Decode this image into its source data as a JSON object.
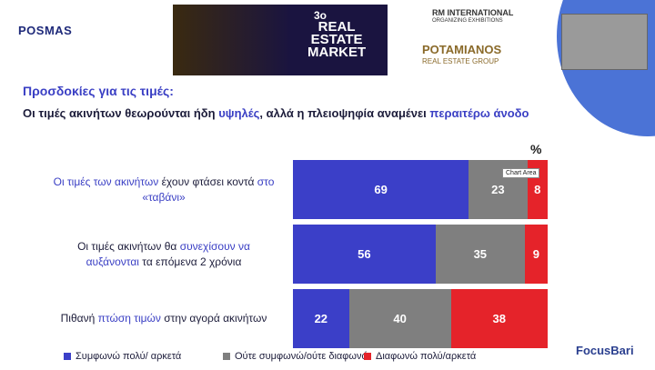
{
  "logos": {
    "posmas": "POSMAS",
    "market_number": "3ο",
    "market_name": [
      "REAL",
      "ESTATE",
      "MARKET"
    ],
    "rm": "RM INTERNATIONAL",
    "rm_sub": "ORGANIZING EXHIBITIONS",
    "potamianos": "POTAMIANOS",
    "potamianos_sub": "REAL ESTATE GROUP",
    "focus": "FocusBari"
  },
  "chart_data": {
    "type": "stacked-bar-horizontal",
    "title": "Προσδοκίες για τις τιμές:",
    "subtitle": [
      {
        "text": "Οι τιμές ακινήτων θεωρούνται ήδη ",
        "highlight": false
      },
      {
        "text": "υψηλές",
        "highlight": true
      },
      {
        "text": ", αλλά η πλειοψηφία αναμένει ",
        "highlight": false
      },
      {
        "text": "περαιτέρω άνοδο",
        "highlight": true
      }
    ],
    "unit_label": "%",
    "tooltip": "Chart Area",
    "highlight_color": "#3a3fc4",
    "categories": [
      [
        {
          "text": "Οι τιμές των ακινήτων",
          "highlight": true
        },
        {
          "text": " έχουν φτάσει κοντά ",
          "highlight": false
        },
        {
          "text": "στο «ταβάνι»",
          "highlight": true
        }
      ],
      [
        {
          "text": "Οι τιμές ακινήτων θα ",
          "highlight": false
        },
        {
          "text": "συνεχίσουν να αυξάνονται",
          "highlight": true
        },
        {
          "text": " τα επόμενα 2 χρόνια",
          "highlight": false
        }
      ],
      [
        {
          "text": "Πιθανή ",
          "highlight": false
        },
        {
          "text": "πτώση τιμών",
          "highlight": true
        },
        {
          "text": " στην αγορά ακινήτων",
          "highlight": false
        }
      ]
    ],
    "series": [
      {
        "name": "Συμφωνώ πολύ/ αρκετά",
        "color": "#3b3fc8",
        "values": [
          69,
          56,
          22
        ]
      },
      {
        "name": "Ούτε συμφωνώ/ούτε διαφωνώ",
        "color": "#7f7f7f",
        "values": [
          23,
          35,
          40
        ]
      },
      {
        "name": "Διαφωνώ πολύ/αρκετά",
        "color": "#e5232a",
        "values": [
          8,
          9,
          38
        ]
      }
    ],
    "xlim": [
      0,
      100
    ]
  }
}
